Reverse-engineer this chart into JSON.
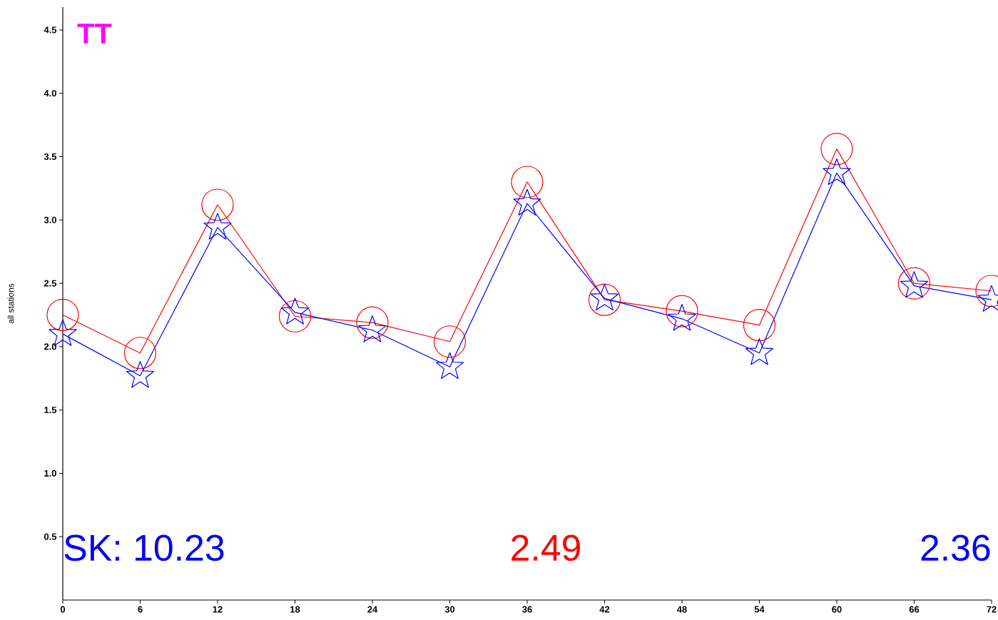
{
  "chart_data": {
    "type": "line",
    "title": "TT",
    "ylabel": "all stations",
    "x": [
      0,
      6,
      12,
      18,
      24,
      30,
      36,
      42,
      48,
      54,
      60,
      66,
      72
    ],
    "series": [
      {
        "color": "#ff0000",
        "marker": "circle",
        "values": [
          2.25,
          1.95,
          3.12,
          2.24,
          2.19,
          2.04,
          3.3,
          2.37,
          2.28,
          2.17,
          3.56,
          2.5,
          2.44
        ]
      },
      {
        "color": "#0000ff",
        "marker": "star",
        "values": [
          2.1,
          1.77,
          2.94,
          2.27,
          2.13,
          1.84,
          3.13,
          2.38,
          2.22,
          1.95,
          3.37,
          2.48,
          2.37
        ]
      }
    ],
    "xlim": [
      0,
      72
    ],
    "ylim": [
      0,
      4.68
    ],
    "xticks": [
      0,
      6,
      12,
      18,
      24,
      30,
      36,
      42,
      48,
      54,
      60,
      66,
      72
    ],
    "yticks": [
      0.5,
      {
        "value": 1,
        "label": "1.0"
      },
      1.5,
      {
        "value": 2,
        "label": "2.0"
      },
      2.5,
      {
        "value": 3,
        "label": "3.0"
      },
      3.5,
      {
        "value": 4,
        "label": "4.0"
      },
      4.5
    ],
    "annotations": [
      "SK:  10.23",
      "2.49",
      "2.36"
    ]
  }
}
